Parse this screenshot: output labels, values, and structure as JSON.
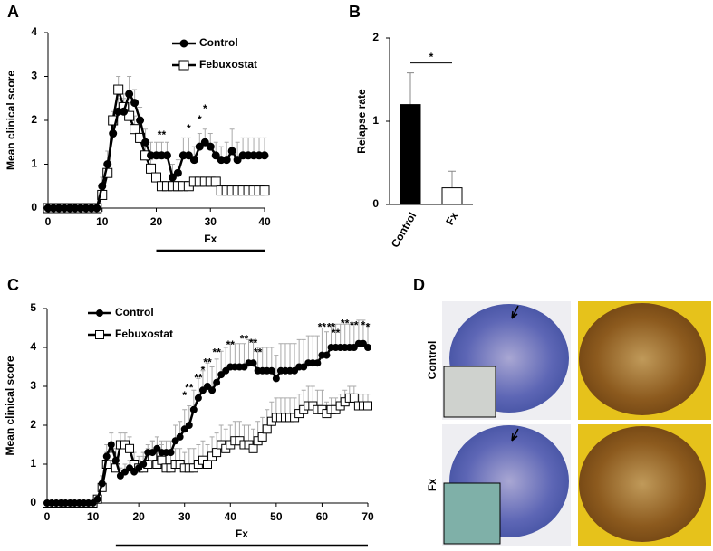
{
  "chart_data": [
    {
      "type": "line",
      "panel_label": "A",
      "y_label": "Mean clinical score",
      "xlim": [
        0,
        40
      ],
      "xticks": [
        0,
        10,
        20,
        30,
        40
      ],
      "ylim": [
        0,
        4
      ],
      "yticks": [
        0,
        1,
        2,
        3,
        4
      ],
      "x": [
        0,
        1,
        2,
        3,
        4,
        5,
        6,
        7,
        8,
        9,
        10,
        11,
        12,
        13,
        14,
        15,
        16,
        17,
        18,
        19,
        20,
        21,
        22,
        23,
        24,
        25,
        26,
        27,
        28,
        29,
        30,
        31,
        32,
        33,
        34,
        35,
        36,
        37,
        38,
        39,
        40
      ],
      "series": [
        {
          "name": "Control",
          "color": "#000000",
          "marker": "circle",
          "fill": "#000000",
          "values": [
            0,
            0,
            0,
            0,
            0,
            0,
            0,
            0,
            0,
            0,
            0.5,
            1.0,
            1.7,
            2.2,
            2.2,
            2.6,
            2.4,
            2.0,
            1.5,
            1.2,
            1.2,
            1.2,
            1.2,
            0.7,
            0.8,
            1.2,
            1.2,
            1.1,
            1.4,
            1.5,
            1.4,
            1.2,
            1.1,
            1.1,
            1.3,
            1.1,
            1.2,
            1.2,
            1.2,
            1.2,
            1.2
          ],
          "errors": [
            0,
            0,
            0,
            0,
            0,
            0,
            0,
            0,
            0,
            0,
            0.2,
            0.3,
            0.3,
            0.3,
            0.3,
            0.4,
            0.3,
            0.3,
            0.3,
            0.3,
            0.3,
            0.3,
            0.3,
            0.3,
            0.3,
            0.4,
            0.4,
            0.3,
            0.3,
            0.3,
            0.3,
            0.3,
            0.3,
            0.4,
            0.5,
            0.4,
            0.4,
            0.4,
            0.4,
            0.4,
            0.4
          ]
        },
        {
          "name": "Febuxostat",
          "color": "#000000",
          "marker": "square",
          "fill": "#ffffff",
          "values": [
            0,
            0,
            0,
            0,
            0,
            0,
            0,
            0,
            0,
            0,
            0.3,
            0.8,
            2.0,
            2.7,
            2.3,
            2.1,
            1.8,
            1.6,
            1.2,
            0.9,
            0.7,
            0.5,
            0.5,
            0.5,
            0.5,
            0.5,
            0.5,
            0.6,
            0.6,
            0.6,
            0.6,
            0.6,
            0.4,
            0.4,
            0.4,
            0.4,
            0.4,
            0.4,
            0.4,
            0.4,
            0.4
          ],
          "errors": [
            0,
            0,
            0,
            0,
            0,
            0,
            0,
            0,
            0,
            0,
            0.1,
            0.2,
            0.2,
            0.3,
            0.3,
            0.3,
            0.3,
            0.3,
            0.2,
            0.2,
            0.1,
            0.1,
            0.1,
            0.1,
            0.1,
            0.1,
            0.1,
            0.1,
            0.1,
            0.1,
            0.1,
            0.1,
            0.1,
            0.1,
            0.1,
            0.1,
            0.1,
            0.1,
            0.1,
            0.1,
            0.1
          ]
        }
      ],
      "annotations": [
        {
          "text": "**",
          "x": 21,
          "y": 1.65
        },
        {
          "text": "*",
          "x": 26,
          "y": 1.8
        },
        {
          "text": "*",
          "x": 28,
          "y": 2.0
        },
        {
          "text": "*",
          "x": 29,
          "y": 2.25
        }
      ],
      "treatment": {
        "label": "Fx",
        "start": 20,
        "end": 40
      }
    },
    {
      "type": "bar",
      "panel_label": "B",
      "y_label": "Relapse rate",
      "categories": [
        "Control",
        "Fx"
      ],
      "values": [
        1.2,
        0.2
      ],
      "errors": [
        0.38,
        0.2
      ],
      "colors": [
        "#000000",
        "#ffffff"
      ],
      "ylim": [
        0,
        2
      ],
      "yticks": [
        0,
        1,
        2
      ],
      "significance": {
        "text": "*",
        "y": 1.7
      }
    },
    {
      "type": "line",
      "panel_label": "C",
      "y_label": "Mean clinical score",
      "xlim": [
        0,
        70
      ],
      "xticks": [
        0,
        10,
        20,
        30,
        40,
        50,
        60,
        70
      ],
      "ylim": [
        0,
        5
      ],
      "yticks": [
        0,
        1,
        2,
        3,
        4,
        5
      ],
      "x": [
        0,
        1,
        2,
        3,
        4,
        5,
        6,
        7,
        8,
        9,
        10,
        11,
        12,
        13,
        14,
        15,
        16,
        17,
        18,
        19,
        20,
        21,
        22,
        23,
        24,
        25,
        26,
        27,
        28,
        29,
        30,
        31,
        32,
        33,
        34,
        35,
        36,
        37,
        38,
        39,
        40,
        41,
        42,
        43,
        44,
        45,
        46,
        47,
        48,
        49,
        50,
        51,
        52,
        53,
        54,
        55,
        56,
        57,
        58,
        59,
        60,
        61,
        62,
        63,
        64,
        65,
        66,
        67,
        68,
        69,
        70
      ],
      "series": [
        {
          "name": "Control",
          "color": "#000000",
          "marker": "circle",
          "fill": "#000000",
          "values": [
            0,
            0,
            0,
            0,
            0,
            0,
            0,
            0,
            0,
            0,
            0,
            0.1,
            0.5,
            1.2,
            1.5,
            1.1,
            0.7,
            0.8,
            0.9,
            0.8,
            0.9,
            1.0,
            1.3,
            1.3,
            1.4,
            1.3,
            1.3,
            1.3,
            1.6,
            1.7,
            1.9,
            2.0,
            2.4,
            2.7,
            2.9,
            3.0,
            2.9,
            3.1,
            3.3,
            3.4,
            3.5,
            3.5,
            3.5,
            3.5,
            3.6,
            3.6,
            3.4,
            3.4,
            3.4,
            3.4,
            3.2,
            3.4,
            3.4,
            3.4,
            3.4,
            3.5,
            3.5,
            3.6,
            3.6,
            3.6,
            3.8,
            3.8,
            4.0,
            4.0,
            4.0,
            4.0,
            4.0,
            4.0,
            4.1,
            4.1,
            4.0
          ],
          "errors": [
            0,
            0,
            0,
            0,
            0,
            0,
            0,
            0,
            0,
            0,
            0,
            0.1,
            0.2,
            0.3,
            0.3,
            0.3,
            0.2,
            0.2,
            0.2,
            0.2,
            0.2,
            0.2,
            0.2,
            0.3,
            0.3,
            0.3,
            0.3,
            0.3,
            0.4,
            0.4,
            0.5,
            0.5,
            0.5,
            0.5,
            0.5,
            0.6,
            0.6,
            0.6,
            0.6,
            0.6,
            0.6,
            0.6,
            0.6,
            0.6,
            0.6,
            0.6,
            0.6,
            0.6,
            0.6,
            0.6,
            0.6,
            0.7,
            0.7,
            0.7,
            0.7,
            0.7,
            0.7,
            0.7,
            0.7,
            0.7,
            0.7,
            0.6,
            0.6,
            0.6,
            0.6,
            0.6,
            0.6,
            0.6,
            0.6,
            0.6,
            0.6
          ]
        },
        {
          "name": "Febuxostat",
          "color": "#000000",
          "marker": "square",
          "fill": "#ffffff",
          "values": [
            0,
            0,
            0,
            0,
            0,
            0,
            0,
            0,
            0,
            0,
            0,
            0.1,
            0.4,
            1.0,
            1.2,
            0.9,
            1.5,
            1.5,
            1.4,
            1.0,
            0.9,
            0.9,
            1.0,
            1.2,
            1.0,
            1.1,
            0.9,
            0.9,
            1.0,
            1.0,
            0.9,
            0.9,
            0.9,
            1.0,
            1.1,
            1.0,
            1.2,
            1.3,
            1.5,
            1.4,
            1.5,
            1.6,
            1.6,
            1.5,
            1.5,
            1.4,
            1.6,
            1.7,
            1.9,
            2.1,
            2.2,
            2.2,
            2.2,
            2.2,
            2.2,
            2.3,
            2.4,
            2.5,
            2.5,
            2.4,
            2.4,
            2.3,
            2.4,
            2.4,
            2.5,
            2.6,
            2.7,
            2.7,
            2.5,
            2.5,
            2.5
          ],
          "errors": [
            0,
            0,
            0,
            0,
            0,
            0,
            0,
            0,
            0,
            0,
            0,
            0.1,
            0.2,
            0.3,
            0.3,
            0.3,
            0.3,
            0.3,
            0.3,
            0.3,
            0.3,
            0.4,
            0.4,
            0.4,
            0.4,
            0.4,
            0.4,
            0.4,
            0.4,
            0.4,
            0.4,
            0.5,
            0.5,
            0.5,
            0.5,
            0.5,
            0.5,
            0.5,
            0.5,
            0.5,
            0.5,
            0.5,
            0.5,
            0.5,
            0.5,
            0.5,
            0.5,
            0.5,
            0.5,
            0.5,
            0.5,
            0.5,
            0.5,
            0.5,
            0.5,
            0.5,
            0.5,
            0.5,
            0.5,
            0.5,
            0.5,
            0.3,
            0.3,
            0.3,
            0.3,
            0.3,
            0.3,
            0.3,
            0.3,
            0.3,
            0.3
          ]
        }
      ],
      "annotations": [
        {
          "text": "*",
          "x": 30,
          "y": 2.75
        },
        {
          "text": "**",
          "x": 31,
          "y": 2.95
        },
        {
          "text": "**",
          "x": 33,
          "y": 3.2
        },
        {
          "text": "*",
          "x": 34,
          "y": 3.4
        },
        {
          "text": "**",
          "x": 35,
          "y": 3.6
        },
        {
          "text": "**",
          "x": 37,
          "y": 3.85
        },
        {
          "text": "**",
          "x": 40,
          "y": 4.05
        },
        {
          "text": "**",
          "x": 43,
          "y": 4.2
        },
        {
          "text": "**",
          "x": 45,
          "y": 4.1
        },
        {
          "text": "**",
          "x": 46,
          "y": 3.85
        },
        {
          "text": "**",
          "x": 60,
          "y": 4.5
        },
        {
          "text": "**",
          "x": 62,
          "y": 4.5
        },
        {
          "text": "**",
          "x": 63,
          "y": 4.35
        },
        {
          "text": "**",
          "x": 65,
          "y": 4.6
        },
        {
          "text": "**",
          "x": 67,
          "y": 4.55
        },
        {
          "text": "*",
          "x": 69,
          "y": 4.55
        },
        {
          "text": "*",
          "x": 70,
          "y": 4.5
        }
      ],
      "treatment": {
        "label": "Fx",
        "start": 15,
        "end": 70
      }
    }
  ],
  "panel_d": {
    "label": "D",
    "rows": [
      "Control",
      "Fx"
    ]
  }
}
